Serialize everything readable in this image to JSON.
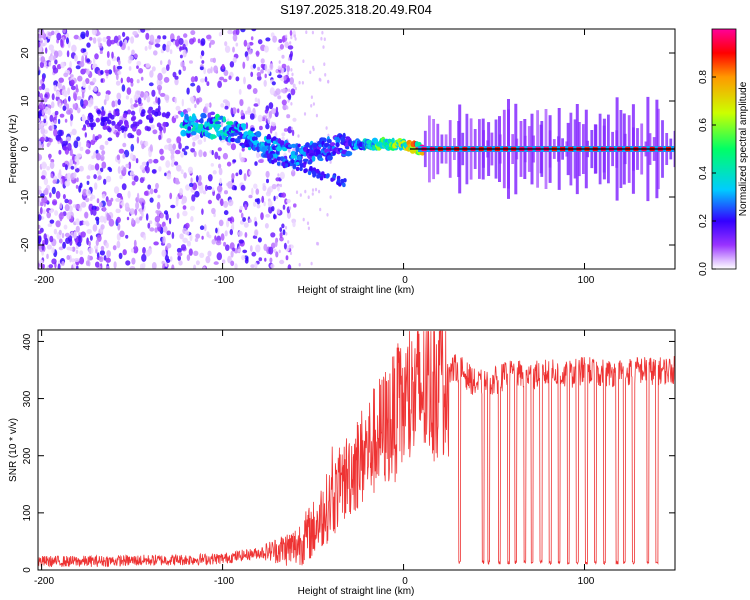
{
  "figure_title": "S197.2025.318.20.49.R04",
  "chart_data": [
    {
      "type": "heatmap",
      "name": "spectrogram",
      "xlabel": "Height of straight line (km)",
      "ylabel": "Frequency (Hz)",
      "xlim": [
        -202,
        150
      ],
      "ylim": [
        -25,
        25
      ],
      "x_ticks": [
        -200,
        -100,
        0,
        100
      ],
      "x_tick_labels": [
        "-200",
        "-100",
        "0",
        "100"
      ],
      "y_ticks": [
        -20,
        -10,
        0,
        10,
        20
      ],
      "y_tick_labels": [
        "-20",
        "-10",
        "0",
        "10",
        "20"
      ],
      "colorbar": {
        "label": "Normalized spectral amplitude",
        "range": [
          0,
          1
        ],
        "ticks": [
          0.0,
          0.2,
          0.4,
          0.6,
          0.8
        ],
        "tick_labels": [
          "0.0",
          "0.2",
          "0.4",
          "0.6",
          "0.8"
        ],
        "stops": [
          "#ffffff",
          "#d9b3ff",
          "#9933ff",
          "#3300ff",
          "#00ccff",
          "#00ff66",
          "#ccff00",
          "#ff9900",
          "#ff0000",
          "#ff0099"
        ]
      },
      "features": {
        "noise_region_km": [
          -202,
          -60
        ],
        "main_trace": [
          {
            "km": -120,
            "hz": 5.0,
            "amp": 0.35
          },
          {
            "km": -100,
            "hz": 4.5,
            "amp": 0.4
          },
          {
            "km": -90,
            "hz": 3.0,
            "amp": 0.35
          },
          {
            "km": -75,
            "hz": 0.5,
            "amp": 0.3
          },
          {
            "km": -60,
            "hz": -1.5,
            "amp": 0.3
          },
          {
            "km": -45,
            "hz": 0.0,
            "amp": 0.25
          },
          {
            "km": -30,
            "hz": 0.8,
            "amp": 0.25
          },
          {
            "km": -15,
            "hz": 1.0,
            "amp": 0.5
          },
          {
            "km": 0,
            "hz": 1.0,
            "amp": 0.6
          },
          {
            "km": 10,
            "hz": 0.0,
            "amp": 0.9
          },
          {
            "km": 150,
            "hz": 0.0,
            "amp": 0.9
          }
        ],
        "spread_branch": [
          {
            "km": -75,
            "hz": -2.0
          },
          {
            "km": -55,
            "hz": -4.0
          },
          {
            "km": -45,
            "hz": -5.5
          },
          {
            "km": -32,
            "hz": -7.0
          }
        ],
        "carrier_line_hz": 0,
        "dropout_km": [
          31,
          44,
          47,
          53,
          58,
          62,
          67,
          71,
          76,
          81,
          86,
          91,
          96,
          101,
          106,
          111,
          118,
          122,
          127,
          135,
          140
        ]
      }
    },
    {
      "type": "line",
      "name": "snr",
      "xlabel": "Height of straight line (km)",
      "ylabel": "SNR (10 * v/v)",
      "xlim": [
        -202,
        150
      ],
      "ylim": [
        0,
        420
      ],
      "x_ticks": [
        -200,
        -100,
        0,
        100
      ],
      "x_tick_labels": [
        "-200",
        "-100",
        "0",
        "100"
      ],
      "y_ticks": [
        0,
        100,
        200,
        300,
        400
      ],
      "y_tick_labels": [
        "0",
        "100",
        "200",
        "300",
        "400"
      ],
      "series": [
        {
          "name": "SNR",
          "color": "#ee3333",
          "x": [
            -202,
            -180,
            -160,
            -140,
            -120,
            -100,
            -90,
            -80,
            -70,
            -60,
            -50,
            -40,
            -30,
            -20,
            -10,
            0,
            10,
            20,
            30,
            40,
            50,
            60,
            70,
            80,
            90,
            100,
            110,
            120,
            130,
            140,
            150
          ],
          "y": [
            15,
            15,
            16,
            17,
            18,
            20,
            25,
            30,
            35,
            40,
            70,
            120,
            170,
            210,
            250,
            285,
            315,
            340,
            355,
            325,
            330,
            345,
            340,
            345,
            340,
            350,
            345,
            345,
            350,
            348,
            350
          ]
        }
      ],
      "dropouts_km": [
        31,
        44,
        47,
        53,
        58,
        62,
        67,
        71,
        76,
        81,
        86,
        91,
        96,
        101,
        106,
        111,
        118,
        122,
        127,
        135,
        140
      ],
      "dropout_level": 10
    }
  ]
}
